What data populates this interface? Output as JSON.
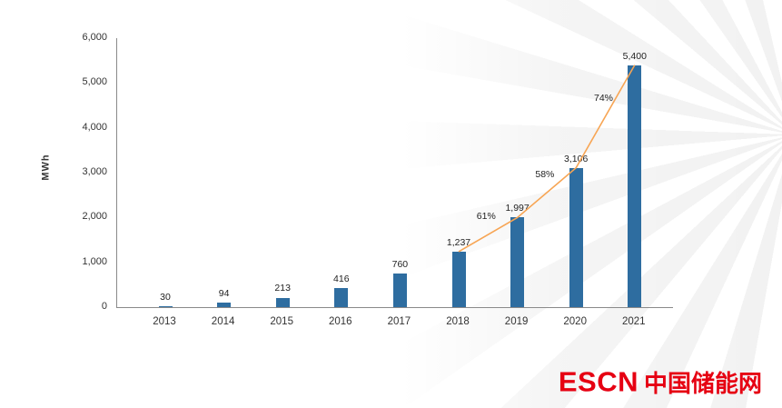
{
  "chart_data": {
    "type": "bar",
    "title": "",
    "xlabel": "",
    "ylabel": "MWh",
    "ylim": [
      0,
      6000
    ],
    "yticks": [
      0,
      1000,
      2000,
      3000,
      4000,
      5000,
      6000
    ],
    "ytick_labels": [
      "0",
      "1,000",
      "2,000",
      "3,000",
      "4,000",
      "5,000",
      "6,000"
    ],
    "categories": [
      "2013",
      "2014",
      "2015",
      "2016",
      "2017",
      "2018",
      "2019",
      "2020",
      "2021"
    ],
    "values": [
      30,
      94,
      213,
      416,
      760,
      1237,
      1997,
      3106,
      5400
    ],
    "value_labels": [
      "30",
      "94",
      "213",
      "416",
      "760",
      "1,237",
      "1,997",
      "3,106",
      "5,400"
    ],
    "bar_color": "#2e6da0",
    "grid": false,
    "legend": null,
    "growth_line": {
      "color": "#f7a554",
      "points": [
        "2018",
        "2019",
        "2020",
        "2021"
      ],
      "percent_labels": [
        {
          "between": [
            "2018",
            "2019"
          ],
          "label": "61%"
        },
        {
          "between": [
            "2019",
            "2020"
          ],
          "label": "58%"
        },
        {
          "between": [
            "2020",
            "2021"
          ],
          "label": "74%"
        }
      ]
    }
  },
  "logo": {
    "text_en": "ESCN",
    "text_zh": "中国储能网",
    "color": "#e60012"
  }
}
